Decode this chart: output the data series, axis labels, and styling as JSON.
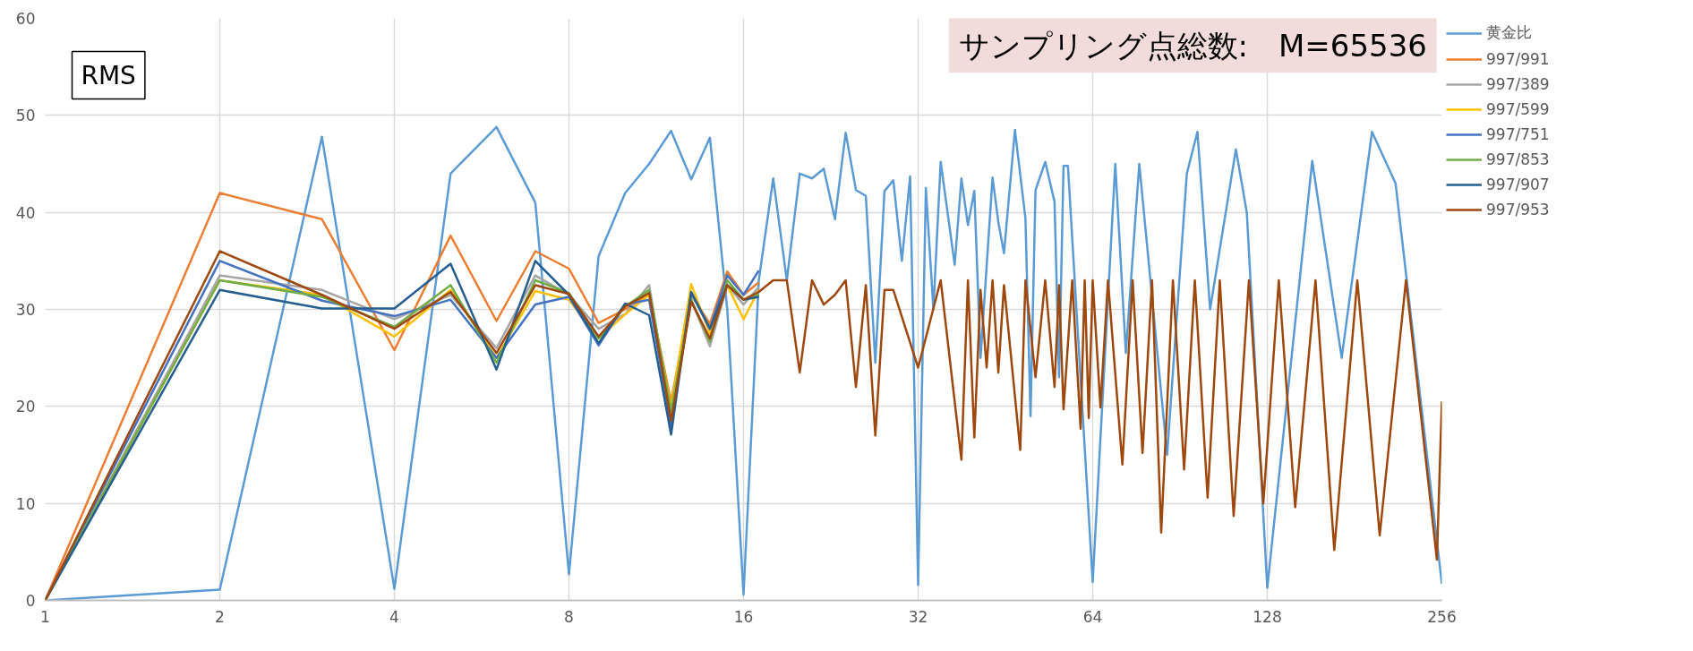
{
  "chart_data": {
    "type": "line",
    "annotations": [
      "RMS",
      "サンプリング点総数:　M=65536"
    ],
    "log": "x",
    "xlim": [
      1,
      256
    ],
    "xticks": [
      1,
      2,
      4,
      8,
      16,
      32,
      64,
      128,
      256
    ],
    "ylim": [
      0,
      60
    ],
    "yticks": [
      0,
      10,
      20,
      30,
      40,
      50,
      60
    ],
    "grid": true,
    "legend": "right",
    "line_style": "solid",
    "series": [
      {
        "name": "黄金比",
        "color": "#5b9bd5",
        "x": [
          1,
          2,
          3,
          4,
          5,
          6,
          7,
          8,
          9,
          10,
          11,
          12,
          13,
          14,
          15,
          16,
          17,
          18,
          19,
          20,
          21,
          22,
          23,
          24,
          25,
          26,
          27,
          28,
          29,
          30,
          31,
          32,
          33,
          34,
          35,
          37,
          38,
          39,
          40,
          41,
          43,
          44,
          45,
          47,
          49,
          50,
          51,
          53,
          55,
          56,
          57,
          58,
          64,
          70,
          73,
          77,
          86,
          93,
          97,
          102,
          113,
          118,
          128,
          153,
          172,
          194,
          213,
          256
        ],
        "values": [
          0,
          1.1,
          47.8,
          1.2,
          44,
          48.8,
          41,
          2.7,
          35.5,
          42,
          45,
          48.4,
          43.4,
          47.7,
          30,
          0.6,
          33,
          43.5,
          33,
          44,
          43.5,
          44.5,
          39.3,
          48.2,
          42.3,
          41.7,
          24.5,
          42.2,
          43.3,
          35,
          43.7,
          1.6,
          42.5,
          30,
          45.2,
          34.6,
          43.5,
          38.7,
          42.2,
          25,
          43.6,
          39,
          35.8,
          48.5,
          39.4,
          19,
          42.3,
          45.2,
          41.1,
          23,
          44.8,
          44.8,
          1.9,
          45,
          25.5,
          45,
          15,
          44,
          48.3,
          30,
          46.5,
          40,
          1.3,
          45.3,
          25,
          48.3,
          43,
          1.7
        ]
      },
      {
        "name": "997/991",
        "color": "#ed7d31",
        "x": [
          1,
          2,
          3,
          4,
          5,
          6,
          7,
          8,
          9,
          10,
          11,
          12,
          13,
          14,
          15,
          16,
          17
        ],
        "values": [
          0,
          42,
          39.3,
          25.8,
          37.6,
          28.8,
          36,
          34.2,
          28.6,
          30,
          31.5,
          20.5,
          31.5,
          28.5,
          33.9,
          31.5,
          32.8
        ]
      },
      {
        "name": "997/389",
        "color": "#a5a5a5",
        "x": [
          1,
          2,
          3,
          4,
          5,
          6,
          7,
          8,
          9,
          10,
          11,
          12,
          13,
          14,
          15,
          16,
          17
        ],
        "values": [
          0,
          33.5,
          32,
          29,
          31.5,
          26,
          33.5,
          31.5,
          28,
          29.5,
          32.5,
          19,
          31,
          26.2,
          32.5,
          30.5,
          32.3
        ]
      },
      {
        "name": "997/599",
        "color": "#ffc000",
        "x": [
          1,
          2,
          3,
          4,
          5,
          6,
          7,
          8,
          9,
          10,
          11,
          12,
          13,
          14,
          15,
          16,
          17
        ],
        "values": [
          0,
          33,
          31.5,
          27.2,
          32,
          25,
          31.9,
          31,
          27,
          29.5,
          31.5,
          20,
          32.6,
          27.5,
          32.5,
          29,
          32
        ]
      },
      {
        "name": "997/751",
        "color": "#4472c4",
        "x": [
          1,
          2,
          3,
          4,
          5,
          6,
          7,
          8,
          9,
          10,
          11,
          12,
          13,
          14,
          15,
          16,
          17
        ],
        "values": [
          0,
          35,
          30.9,
          29.3,
          31,
          25,
          30.5,
          31.3,
          26.3,
          30.5,
          31,
          18,
          31.7,
          28,
          33.5,
          31.5,
          34
        ]
      },
      {
        "name": "997/853",
        "color": "#70ad47",
        "x": [
          1,
          2,
          3,
          4,
          5,
          6,
          7,
          8,
          9,
          10,
          11,
          12,
          13,
          14,
          15,
          16,
          17
        ],
        "values": [
          0,
          33,
          31.3,
          28.2,
          32.5,
          24.5,
          33,
          31.7,
          27,
          30.3,
          32,
          19.5,
          31,
          26.7,
          33,
          31,
          31.5
        ]
      },
      {
        "name": "997/907",
        "color": "#255e91",
        "x": [
          1,
          2,
          3,
          4,
          5,
          6,
          7,
          8,
          9,
          10,
          11,
          12,
          13,
          14,
          15,
          16,
          17
        ],
        "values": [
          0,
          32,
          30.1,
          30.1,
          34.7,
          23.8,
          35,
          31.5,
          26.5,
          30.6,
          29.4,
          17.1,
          31.8,
          28,
          32.5,
          31,
          31.3
        ]
      },
      {
        "name": "997/953",
        "color": "#9e480e",
        "x": [
          1,
          2,
          3,
          4,
          5,
          6,
          7,
          8,
          9,
          10,
          11,
          12,
          13,
          14,
          15,
          16,
          17,
          18,
          19,
          20,
          21,
          22,
          23,
          24,
          25,
          26,
          27,
          28,
          29,
          32,
          35,
          38,
          39,
          40,
          41,
          42,
          43,
          44,
          45,
          48,
          49,
          51,
          53,
          55,
          56,
          57,
          59,
          61,
          62,
          63,
          64,
          66,
          68,
          72,
          75,
          78,
          81,
          84,
          88,
          92,
          96,
          101,
          106,
          112,
          119,
          126,
          134,
          143,
          155,
          167,
          183,
          200,
          222,
          251,
          256
        ],
        "values": [
          0,
          36,
          31.5,
          28,
          31.8,
          25.5,
          32.5,
          31.6,
          27.2,
          30.3,
          31.7,
          18.5,
          30.8,
          27,
          32.5,
          31,
          31.8,
          33,
          33,
          23.5,
          33,
          30.5,
          31.5,
          33,
          22,
          32.5,
          17,
          32,
          32,
          24,
          33,
          14.5,
          33,
          16.8,
          32,
          24,
          33,
          23.5,
          32.5,
          15.5,
          33,
          23,
          33,
          22,
          32.5,
          19.7,
          33,
          17.7,
          33,
          18.8,
          33,
          19.9,
          33,
          14,
          33,
          15.2,
          33,
          7,
          33,
          13.5,
          33,
          10.6,
          33,
          8.7,
          33,
          10,
          33,
          9.6,
          33,
          5.2,
          33,
          6.7,
          33,
          4.2,
          20.5
        ]
      }
    ]
  }
}
